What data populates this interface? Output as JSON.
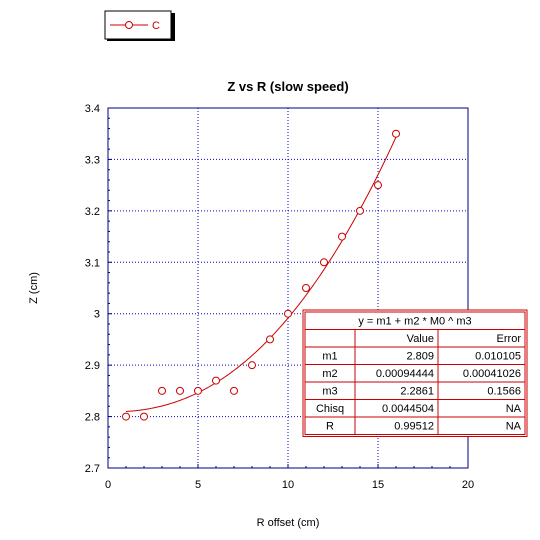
{
  "chart_data": {
    "type": "scatter",
    "title": "Z vs R (slow speed)",
    "xlabel": "R offset (cm)",
    "ylabel": "Z (cm)",
    "xlim": [
      0,
      20
    ],
    "ylim": [
      2.7,
      3.4
    ],
    "x_ticks": [
      "0",
      "5",
      "10",
      "15",
      "20"
    ],
    "y_ticks": [
      "2.7",
      "2.8",
      "2.9",
      "3",
      "3.1",
      "3.2",
      "3.3",
      "3.4"
    ],
    "grid": true,
    "legend_position": "top-left",
    "series": [
      {
        "name": "C",
        "color": "#cc0000",
        "marker": "open-circle",
        "x": [
          1,
          2,
          3,
          4,
          5,
          6,
          7,
          8,
          9,
          10,
          11,
          12,
          13,
          14,
          15,
          16
        ],
        "y": [
          2.8,
          2.8,
          2.85,
          2.85,
          2.85,
          2.87,
          2.85,
          2.9,
          2.95,
          3.0,
          3.05,
          3.1,
          3.15,
          3.2,
          3.25,
          3.35
        ]
      }
    ],
    "fit": {
      "m1": 2.809,
      "m2": 0.00094444,
      "m3": 2.2861,
      "x_range": [
        1,
        16
      ],
      "table": {
        "equation": "y = m1 + m2 * M0 ^ m3",
        "headers": [
          "",
          "Value",
          "Error"
        ],
        "rows": [
          [
            "m1",
            "2.809",
            "0.010105"
          ],
          [
            "m2",
            "0.00094444",
            "0.00041026"
          ],
          [
            "m3",
            "2.2861",
            "0.1566"
          ],
          [
            "Chisq",
            "0.0044504",
            "NA"
          ],
          [
            "R",
            "0.99512",
            "NA"
          ]
        ]
      }
    },
    "colors": {
      "grid": "#0000cc",
      "axis": "#000080",
      "series": "#cc0000"
    }
  }
}
